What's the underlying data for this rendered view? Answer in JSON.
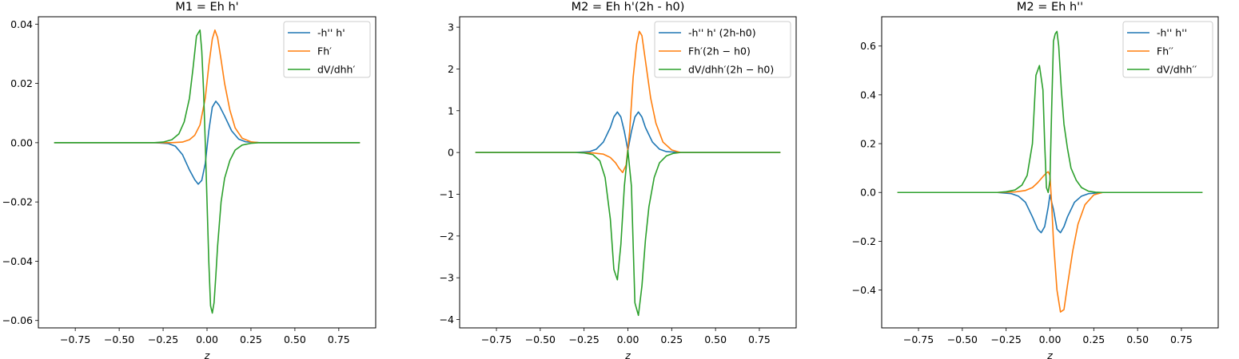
{
  "chart_data": [
    {
      "type": "line",
      "title": "M1 = Eh h'",
      "xlabel": "z",
      "ylabel": "",
      "xlim": [
        -0.96,
        0.96
      ],
      "ylim": [
        -0.0625,
        0.0425
      ],
      "xticks": [
        -0.75,
        -0.5,
        -0.25,
        0.0,
        0.25,
        0.5,
        0.75
      ],
      "xtick_labels": [
        "−0.75",
        "−0.50",
        "−0.25",
        "0.00",
        "0.25",
        "0.50",
        "0.75"
      ],
      "yticks": [
        -0.06,
        -0.04,
        -0.02,
        0.0,
        0.02,
        0.04
      ],
      "ytick_labels": [
        "−0.06",
        "−0.04",
        "−0.02",
        "0.00",
        "0.02",
        "0.04"
      ],
      "grid": false,
      "legend": "upper-right",
      "series": [
        {
          "name": "-h'' h'",
          "color": "#1f77b4",
          "x": [
            -0.87,
            -0.3,
            -0.22,
            -0.18,
            -0.14,
            -0.1,
            -0.07,
            -0.05,
            -0.03,
            -0.01,
            0.01,
            0.03,
            0.05,
            0.07,
            0.1,
            0.14,
            0.18,
            0.22,
            0.3,
            0.87
          ],
          "y": [
            0,
            0,
            -0.0003,
            -0.0012,
            -0.004,
            -0.0092,
            -0.0125,
            -0.014,
            -0.0127,
            -0.007,
            0.004,
            0.012,
            0.014,
            0.0125,
            0.009,
            0.004,
            0.0012,
            0.0003,
            0,
            0
          ]
        },
        {
          "name": "Fh′",
          "color": "#ff7f0e",
          "x": [
            -0.87,
            -0.3,
            -0.2,
            -0.14,
            -0.1,
            -0.07,
            -0.04,
            -0.01,
            0.01,
            0.03,
            0.045,
            0.06,
            0.08,
            0.1,
            0.13,
            0.16,
            0.2,
            0.25,
            0.3,
            0.87
          ],
          "y": [
            0,
            0,
            0,
            0.0002,
            0.001,
            0.0025,
            0.006,
            0.015,
            0.026,
            0.035,
            0.038,
            0.0355,
            0.028,
            0.02,
            0.011,
            0.005,
            0.0015,
            0.0003,
            0,
            0
          ]
        },
        {
          "name": "dV/dhh′",
          "color": "#2ca02c",
          "x": [
            -0.87,
            -0.3,
            -0.25,
            -0.2,
            -0.16,
            -0.13,
            -0.1,
            -0.08,
            -0.06,
            -0.04,
            -0.03,
            -0.02,
            -0.01,
            0.0,
            0.01,
            0.02,
            0.03,
            0.04,
            0.05,
            0.06,
            0.08,
            0.1,
            0.13,
            0.16,
            0.2,
            0.25,
            0.3,
            0.87
          ],
          "y": [
            0,
            0,
            0.0002,
            0.001,
            0.003,
            0.007,
            0.015,
            0.025,
            0.036,
            0.038,
            0.031,
            0.018,
            0.0,
            -0.02,
            -0.04,
            -0.055,
            -0.0575,
            -0.054,
            -0.045,
            -0.035,
            -0.02,
            -0.012,
            -0.006,
            -0.0025,
            -0.0008,
            -0.0002,
            0,
            0
          ]
        }
      ]
    },
    {
      "type": "line",
      "title": "M2 = Eh h'(2h - h0)",
      "xlabel": "z",
      "ylabel": "",
      "xlim": [
        -0.96,
        0.96
      ],
      "ylim": [
        -4.2,
        3.25
      ],
      "xticks": [
        -0.75,
        -0.5,
        -0.25,
        0.0,
        0.25,
        0.5,
        0.75
      ],
      "xtick_labels": [
        "−0.75",
        "−0.50",
        "−0.25",
        "0.00",
        "0.25",
        "0.50",
        "0.75"
      ],
      "yticks": [
        -4,
        -3,
        -2,
        -1,
        0,
        1,
        2,
        3
      ],
      "ytick_labels": [
        "−4",
        "−3",
        "−2",
        "−1",
        "0",
        "1",
        "2",
        "3"
      ],
      "grid": false,
      "legend": "upper-right",
      "series": [
        {
          "name": "-h'' h' (2h-h0)",
          "color": "#1f77b4",
          "x": [
            -0.87,
            -0.3,
            -0.22,
            -0.18,
            -0.14,
            -0.1,
            -0.08,
            -0.06,
            -0.04,
            -0.02,
            0.0,
            0.02,
            0.04,
            0.06,
            0.08,
            0.1,
            0.14,
            0.18,
            0.22,
            0.3,
            0.87
          ],
          "y": [
            0,
            0,
            0.02,
            0.08,
            0.25,
            0.6,
            0.85,
            0.97,
            0.85,
            0.5,
            0.05,
            0.5,
            0.85,
            0.97,
            0.85,
            0.6,
            0.25,
            0.08,
            0.02,
            0,
            0
          ]
        },
        {
          "name": "Fh′(2h − h0)",
          "color": "#ff7f0e",
          "x": [
            -0.87,
            -0.3,
            -0.2,
            -0.14,
            -0.1,
            -0.07,
            -0.05,
            -0.03,
            -0.01,
            0.01,
            0.03,
            0.05,
            0.065,
            0.08,
            0.1,
            0.13,
            0.16,
            0.2,
            0.25,
            0.3,
            0.87
          ],
          "y": [
            0,
            0,
            -0.01,
            -0.04,
            -0.12,
            -0.25,
            -0.38,
            -0.48,
            -0.3,
            0.5,
            1.8,
            2.6,
            2.9,
            2.8,
            2.2,
            1.3,
            0.7,
            0.25,
            0.06,
            0,
            0
          ]
        },
        {
          "name": "dV/dhh′(2h − h0)",
          "color": "#2ca02c",
          "x": [
            -0.87,
            -0.3,
            -0.25,
            -0.2,
            -0.16,
            -0.13,
            -0.1,
            -0.08,
            -0.06,
            -0.04,
            -0.02,
            0.0,
            0.02,
            0.04,
            0.06,
            0.08,
            0.1,
            0.12,
            0.15,
            0.18,
            0.22,
            0.26,
            0.3,
            0.87
          ],
          "y": [
            0,
            0,
            -0.01,
            -0.05,
            -0.2,
            -0.6,
            -1.6,
            -2.8,
            -3.05,
            -2.2,
            -0.8,
            0.05,
            -0.8,
            -3.6,
            -3.9,
            -3.2,
            -2.1,
            -1.3,
            -0.6,
            -0.25,
            -0.08,
            -0.02,
            0,
            0
          ]
        }
      ]
    },
    {
      "type": "line",
      "title": "M2 = Eh h''",
      "xlabel": "z",
      "ylabel": "",
      "xlim": [
        -0.96,
        0.96
      ],
      "ylim": [
        -0.555,
        0.72
      ],
      "xticks": [
        -0.75,
        -0.5,
        -0.25,
        0.0,
        0.25,
        0.5,
        0.75
      ],
      "xtick_labels": [
        "−0.75",
        "−0.50",
        "−0.25",
        "0.00",
        "0.25",
        "0.50",
        "0.75"
      ],
      "yticks": [
        -0.4,
        -0.2,
        0.0,
        0.2,
        0.4,
        0.6
      ],
      "ytick_labels": [
        "−0.4",
        "−0.2",
        "0.0",
        "0.2",
        "0.4",
        "0.6"
      ],
      "grid": false,
      "legend": "upper-right",
      "series": [
        {
          "name": "-h'' h''",
          "color": "#1f77b4",
          "x": [
            -0.87,
            -0.3,
            -0.22,
            -0.18,
            -0.14,
            -0.1,
            -0.07,
            -0.05,
            -0.03,
            -0.01,
            0.0,
            0.02,
            0.04,
            0.06,
            0.08,
            0.1,
            0.14,
            0.18,
            0.22,
            0.3,
            0.87
          ],
          "y": [
            0,
            0,
            -0.005,
            -0.015,
            -0.04,
            -0.1,
            -0.15,
            -0.165,
            -0.14,
            -0.06,
            -0.01,
            -0.07,
            -0.15,
            -0.165,
            -0.14,
            -0.1,
            -0.04,
            -0.015,
            -0.005,
            0,
            0
          ]
        },
        {
          "name": "Fh′′",
          "color": "#ff7f0e",
          "x": [
            -0.87,
            -0.3,
            -0.2,
            -0.14,
            -0.1,
            -0.07,
            -0.04,
            -0.02,
            -0.01,
            0.0,
            0.01,
            0.02,
            0.04,
            0.06,
            0.08,
            0.1,
            0.13,
            0.16,
            0.2,
            0.25,
            0.3,
            0.87
          ],
          "y": [
            0,
            0,
            0.002,
            0.008,
            0.02,
            0.04,
            0.065,
            0.08,
            0.085,
            0.07,
            -0.05,
            -0.2,
            -0.4,
            -0.49,
            -0.48,
            -0.38,
            -0.24,
            -0.13,
            -0.05,
            -0.01,
            0,
            0
          ]
        },
        {
          "name": "dV/dhh′′",
          "color": "#2ca02c",
          "x": [
            -0.87,
            -0.3,
            -0.25,
            -0.2,
            -0.16,
            -0.13,
            -0.1,
            -0.08,
            -0.06,
            -0.04,
            -0.03,
            -0.02,
            -0.01,
            0.0,
            0.01,
            0.02,
            0.03,
            0.04,
            0.05,
            0.065,
            0.08,
            0.1,
            0.12,
            0.15,
            0.18,
            0.22,
            0.26,
            0.3,
            0.87
          ],
          "y": [
            0,
            0,
            0.003,
            0.01,
            0.03,
            0.07,
            0.2,
            0.48,
            0.52,
            0.42,
            0.2,
            0.02,
            0.0,
            0.05,
            0.35,
            0.62,
            0.65,
            0.66,
            0.6,
            0.42,
            0.28,
            0.18,
            0.1,
            0.05,
            0.02,
            0.005,
            0.001,
            0,
            0
          ]
        }
      ]
    }
  ]
}
